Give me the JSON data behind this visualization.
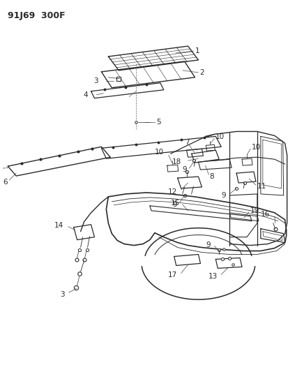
{
  "title": "91J69  300F",
  "bg_color": "#ffffff",
  "line_color": "#2a2a2a",
  "fig_width": 4.14,
  "fig_height": 5.33,
  "dpi": 100
}
